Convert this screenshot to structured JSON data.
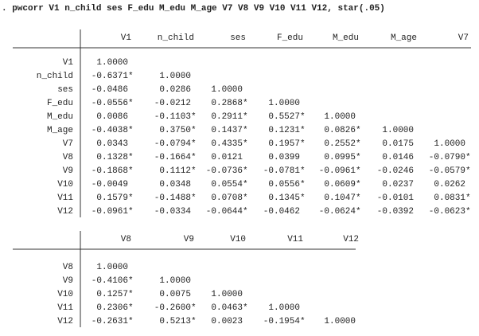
{
  "command": ". pwcorr V1 n_child ses F_edu M_edu M_age V7 V8 V9 V10 V11 V12, star(.05)",
  "tables": [
    {
      "columns": [
        "V1",
        "n_child",
        "ses",
        "F_edu",
        "M_edu",
        "M_age",
        "V7"
      ],
      "rows": [
        {
          "name": "V1",
          "cells": [
            "1.0000"
          ]
        },
        {
          "name": "n_child",
          "cells": [
            "-0.6371*",
            "1.0000"
          ]
        },
        {
          "name": "ses",
          "cells": [
            "-0.0486",
            "0.0286",
            "1.0000"
          ]
        },
        {
          "name": "F_edu",
          "cells": [
            "-0.0556*",
            "-0.0212",
            "0.2868*",
            "1.0000"
          ]
        },
        {
          "name": "M_edu",
          "cells": [
            "0.0086",
            "-0.1103*",
            "0.2911*",
            "0.5527*",
            "1.0000"
          ]
        },
        {
          "name": "M_age",
          "cells": [
            "-0.4038*",
            "0.3750*",
            "0.1437*",
            "0.1231*",
            "0.0826*",
            "1.0000"
          ]
        },
        {
          "name": "V7",
          "cells": [
            "0.0343",
            "-0.0794*",
            "0.4335*",
            "0.1957*",
            "0.2552*",
            "0.0175",
            "1.0000"
          ]
        },
        {
          "name": "V8",
          "cells": [
            "0.1328*",
            "-0.1664*",
            "0.0121",
            "0.0399",
            "0.0995*",
            "0.0146",
            "-0.0790*"
          ]
        },
        {
          "name": "V9",
          "cells": [
            "-0.1868*",
            "0.1112*",
            "-0.0736*",
            "-0.0781*",
            "-0.0961*",
            "-0.0246",
            "-0.0579*"
          ]
        },
        {
          "name": "V10",
          "cells": [
            "-0.0049",
            "0.0348",
            "0.0554*",
            "0.0556*",
            "0.0609*",
            "0.0237",
            "0.0262"
          ]
        },
        {
          "name": "V11",
          "cells": [
            "0.1579*",
            "-0.1488*",
            "0.0708*",
            "0.1345*",
            "0.1047*",
            "-0.0101",
            "0.0831*"
          ]
        },
        {
          "name": "V12",
          "cells": [
            "-0.0961*",
            "-0.0334",
            "-0.0644*",
            "-0.0462",
            "-0.0624*",
            "-0.0392",
            "-0.0623*"
          ]
        }
      ]
    },
    {
      "columns": [
        "V8",
        "V9",
        "V10",
        "V11",
        "V12"
      ],
      "rows": [
        {
          "name": "V8",
          "cells": [
            "1.0000"
          ]
        },
        {
          "name": "V9",
          "cells": [
            "-0.4106*",
            "1.0000"
          ]
        },
        {
          "name": "V10",
          "cells": [
            "0.1257*",
            "0.0075",
            "1.0000"
          ]
        },
        {
          "name": "V11",
          "cells": [
            "0.2306*",
            "-0.2600*",
            "0.0463*",
            "1.0000"
          ]
        },
        {
          "name": "V12",
          "cells": [
            "-0.2631*",
            "0.5213*",
            "0.0023",
            "-0.1954*",
            "1.0000"
          ]
        }
      ]
    }
  ]
}
